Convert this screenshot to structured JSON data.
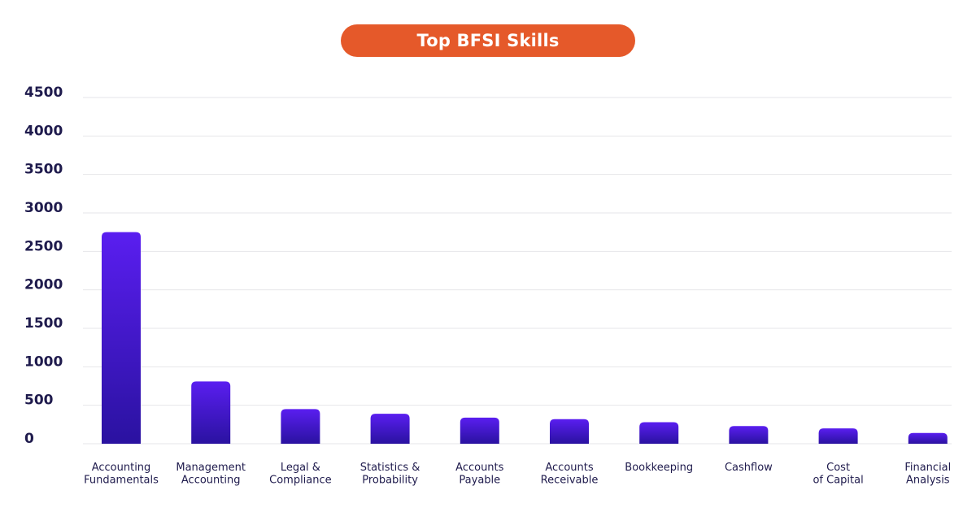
{
  "chart_data": {
    "type": "bar",
    "title": "Top BFSI Skills",
    "categories": [
      [
        "Accounting",
        "Fundamentals"
      ],
      [
        "Management",
        "Accounting"
      ],
      [
        "Legal &",
        "Compliance"
      ],
      [
        "Statistics &",
        "Probability"
      ],
      [
        "Accounts",
        "Payable"
      ],
      [
        "Accounts",
        "Receivable"
      ],
      [
        "Bookkeeping"
      ],
      [
        "Cashflow"
      ],
      [
        "Cost",
        "of Capital"
      ],
      [
        "Financial",
        "Analysis"
      ]
    ],
    "values": [
      2750,
      810,
      450,
      390,
      340,
      320,
      280,
      230,
      200,
      140
    ],
    "ylim": [
      0,
      4500
    ],
    "yticks": [
      0,
      500,
      1000,
      1500,
      2000,
      2500,
      3000,
      3500,
      4000,
      4500
    ],
    "xlabel": "",
    "ylabel": "",
    "grid": true,
    "colors": {
      "bar_top": "#5A1EF0",
      "bar_bottom": "#2A12A0",
      "title_bg": "#E5592A",
      "text": "#1F1B4D",
      "grid": "#E6E6EA"
    }
  }
}
